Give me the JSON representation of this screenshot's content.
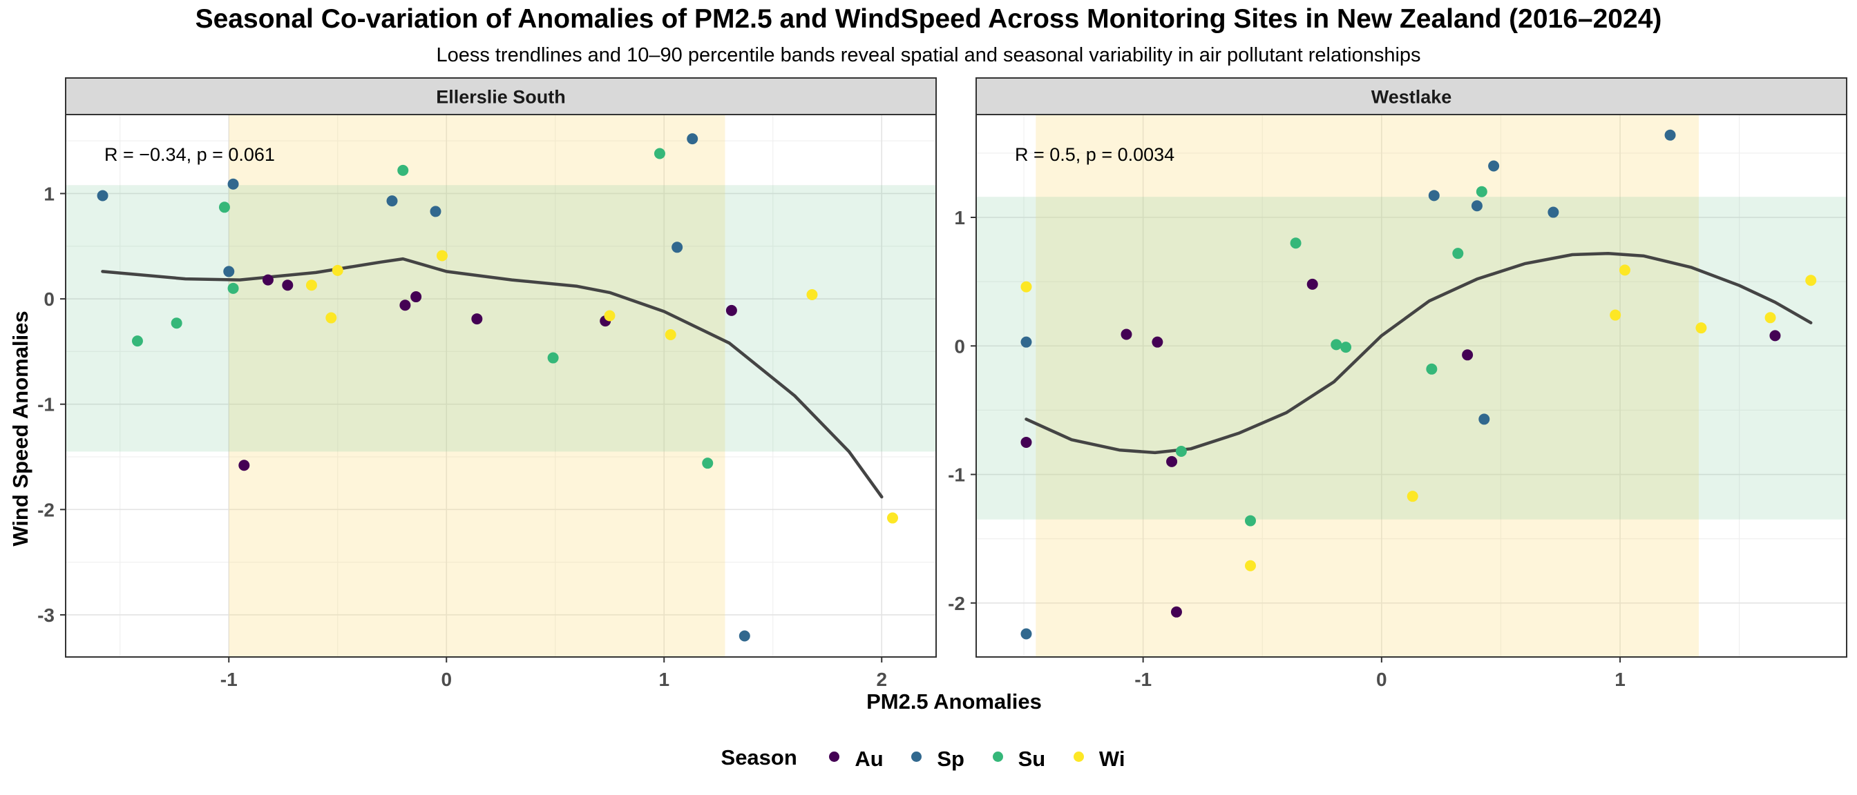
{
  "title": "Seasonal Co-variation of Anomalies of PM2.5 and WindSpeed Across Monitoring Sites in New Zealand (2016–2024)",
  "subtitle": "Loess trendlines and 10–90 percentile bands reveal spatial and seasonal variability in air pollutant relationships",
  "legend": {
    "title": "Season",
    "items": [
      {
        "key": "Au",
        "label": "Au",
        "color": "#440154"
      },
      {
        "key": "Sp",
        "label": "Sp",
        "color": "#31688e"
      },
      {
        "key": "Su",
        "label": "Su",
        "color": "#35b779"
      },
      {
        "key": "Wi",
        "label": "Wi",
        "color": "#fde725"
      }
    ]
  },
  "chart_data": {
    "type": "scatter",
    "xlabel": "PM2.5 Anomalies",
    "ylabel": "Wind Speed Anomalies",
    "grid": true,
    "legend_position": "bottom",
    "band_colors": {
      "x_band": "#fff3d6",
      "y_band": "#dff0e6"
    },
    "trend_color": "#444444",
    "panels": [
      {
        "strip": "Ellerslie South",
        "annotation": {
          "R": "R = −0.34, p = 0.061",
          "R_value": -0.34,
          "p_value": 0.061
        },
        "xlim": [
          -1.75,
          2.25
        ],
        "ylim": [
          -3.4,
          1.75
        ],
        "xticks": [
          -1,
          0,
          1,
          2
        ],
        "xtick_labels": [
          "-1",
          "0",
          "1",
          "2"
        ],
        "yticks": [
          -3,
          -2,
          -1,
          0,
          1
        ],
        "ytick_labels": [
          "-3",
          "-2",
          "-1",
          "0",
          "1"
        ],
        "x_band": [
          -1.0,
          1.28
        ],
        "y_band": [
          -1.45,
          1.08
        ],
        "points": [
          {
            "x": -1.58,
            "y": 0.98,
            "season": "Sp"
          },
          {
            "x": -0.98,
            "y": 1.09,
            "season": "Sp"
          },
          {
            "x": -1.0,
            "y": 0.26,
            "season": "Sp"
          },
          {
            "x": -0.25,
            "y": 0.93,
            "season": "Sp"
          },
          {
            "x": -0.05,
            "y": 0.83,
            "season": "Sp"
          },
          {
            "x": 1.13,
            "y": 1.52,
            "season": "Sp"
          },
          {
            "x": 1.06,
            "y": 0.49,
            "season": "Sp"
          },
          {
            "x": 1.37,
            "y": -3.2,
            "season": "Sp"
          },
          {
            "x": -1.42,
            "y": -0.4,
            "season": "Su"
          },
          {
            "x": -1.24,
            "y": -0.23,
            "season": "Su"
          },
          {
            "x": -1.02,
            "y": 0.87,
            "season": "Su"
          },
          {
            "x": -0.98,
            "y": 0.1,
            "season": "Su"
          },
          {
            "x": -0.2,
            "y": 1.22,
            "season": "Su"
          },
          {
            "x": 0.98,
            "y": 1.38,
            "season": "Su"
          },
          {
            "x": 0.49,
            "y": -0.56,
            "season": "Su"
          },
          {
            "x": 1.2,
            "y": -1.56,
            "season": "Su"
          },
          {
            "x": -0.82,
            "y": 0.18,
            "season": "Au"
          },
          {
            "x": -0.73,
            "y": 0.13,
            "season": "Au"
          },
          {
            "x": -0.93,
            "y": -1.58,
            "season": "Au"
          },
          {
            "x": -0.19,
            "y": -0.06,
            "season": "Au"
          },
          {
            "x": -0.14,
            "y": 0.02,
            "season": "Au"
          },
          {
            "x": 0.14,
            "y": -0.19,
            "season": "Au"
          },
          {
            "x": 0.73,
            "y": -0.21,
            "season": "Au"
          },
          {
            "x": 1.31,
            "y": -0.11,
            "season": "Au"
          },
          {
            "x": -0.62,
            "y": 0.13,
            "season": "Wi"
          },
          {
            "x": -0.53,
            "y": -0.18,
            "season": "Wi"
          },
          {
            "x": -0.5,
            "y": 0.27,
            "season": "Wi"
          },
          {
            "x": -0.02,
            "y": 0.41,
            "season": "Wi"
          },
          {
            "x": 0.75,
            "y": -0.16,
            "season": "Wi"
          },
          {
            "x": 1.03,
            "y": -0.34,
            "season": "Wi"
          },
          {
            "x": 1.68,
            "y": 0.04,
            "season": "Wi"
          },
          {
            "x": 2.05,
            "y": -2.08,
            "season": "Wi"
          }
        ],
        "trend": {
          "x": [
            -1.58,
            -1.2,
            -0.95,
            -0.6,
            -0.3,
            -0.2,
            0.0,
            0.3,
            0.6,
            0.75,
            1.0,
            1.3,
            1.6,
            1.85,
            2.0
          ],
          "y": [
            0.26,
            0.19,
            0.18,
            0.25,
            0.35,
            0.38,
            0.26,
            0.18,
            0.12,
            0.06,
            -0.12,
            -0.42,
            -0.92,
            -1.45,
            -1.88
          ]
        }
      },
      {
        "strip": "Westlake",
        "annotation": {
          "R": "R = 0.5, p = 0.0034",
          "R_value": 0.5,
          "p_value": 0.0034
        },
        "xlim": [
          -1.7,
          1.95
        ],
        "ylim": [
          -2.42,
          1.8
        ],
        "xticks": [
          -1,
          0,
          1
        ],
        "xtick_labels": [
          "-1",
          "0",
          "1"
        ],
        "yticks": [
          -2,
          -1,
          0,
          1
        ],
        "ytick_labels": [
          "-2",
          "-1",
          "0",
          "1"
        ],
        "x_band": [
          -1.45,
          1.33
        ],
        "y_band": [
          -1.35,
          1.16
        ],
        "points": [
          {
            "x": -1.49,
            "y": 0.03,
            "season": "Sp"
          },
          {
            "x": -1.49,
            "y": -2.24,
            "season": "Sp"
          },
          {
            "x": 0.22,
            "y": 1.17,
            "season": "Sp"
          },
          {
            "x": 0.4,
            "y": 1.09,
            "season": "Sp"
          },
          {
            "x": 0.47,
            "y": 1.4,
            "season": "Sp"
          },
          {
            "x": 0.43,
            "y": -0.57,
            "season": "Sp"
          },
          {
            "x": 0.72,
            "y": 1.04,
            "season": "Sp"
          },
          {
            "x": 1.21,
            "y": 1.64,
            "season": "Sp"
          },
          {
            "x": -0.84,
            "y": -0.82,
            "season": "Su"
          },
          {
            "x": -0.55,
            "y": -1.36,
            "season": "Su"
          },
          {
            "x": -0.36,
            "y": 0.8,
            "season": "Su"
          },
          {
            "x": -0.19,
            "y": 0.01,
            "season": "Su"
          },
          {
            "x": -0.15,
            "y": -0.01,
            "season": "Su"
          },
          {
            "x": 0.21,
            "y": -0.18,
            "season": "Su"
          },
          {
            "x": 0.32,
            "y": 0.72,
            "season": "Su"
          },
          {
            "x": 0.42,
            "y": 1.2,
            "season": "Su"
          },
          {
            "x": -1.49,
            "y": -0.75,
            "season": "Au"
          },
          {
            "x": -1.07,
            "y": 0.09,
            "season": "Au"
          },
          {
            "x": -0.94,
            "y": 0.03,
            "season": "Au"
          },
          {
            "x": -0.88,
            "y": -0.9,
            "season": "Au"
          },
          {
            "x": -0.86,
            "y": -2.07,
            "season": "Au"
          },
          {
            "x": -0.29,
            "y": 0.48,
            "season": "Au"
          },
          {
            "x": 0.36,
            "y": -0.07,
            "season": "Au"
          },
          {
            "x": 1.65,
            "y": 0.08,
            "season": "Au"
          },
          {
            "x": -1.49,
            "y": 0.46,
            "season": "Wi"
          },
          {
            "x": -0.55,
            "y": -1.71,
            "season": "Wi"
          },
          {
            "x": 0.13,
            "y": -1.17,
            "season": "Wi"
          },
          {
            "x": 0.98,
            "y": 0.24,
            "season": "Wi"
          },
          {
            "x": 1.02,
            "y": 0.59,
            "season": "Wi"
          },
          {
            "x": 1.34,
            "y": 0.14,
            "season": "Wi"
          },
          {
            "x": 1.63,
            "y": 0.22,
            "season": "Wi"
          },
          {
            "x": 1.8,
            "y": 0.51,
            "season": "Wi"
          }
        ],
        "trend": {
          "x": [
            -1.49,
            -1.3,
            -1.1,
            -0.95,
            -0.8,
            -0.6,
            -0.4,
            -0.2,
            0.0,
            0.2,
            0.4,
            0.6,
            0.8,
            0.95,
            1.1,
            1.3,
            1.5,
            1.65,
            1.8
          ],
          "y": [
            -0.57,
            -0.73,
            -0.81,
            -0.83,
            -0.8,
            -0.68,
            -0.52,
            -0.28,
            0.08,
            0.35,
            0.52,
            0.64,
            0.71,
            0.72,
            0.7,
            0.61,
            0.47,
            0.34,
            0.18
          ]
        }
      }
    ]
  }
}
